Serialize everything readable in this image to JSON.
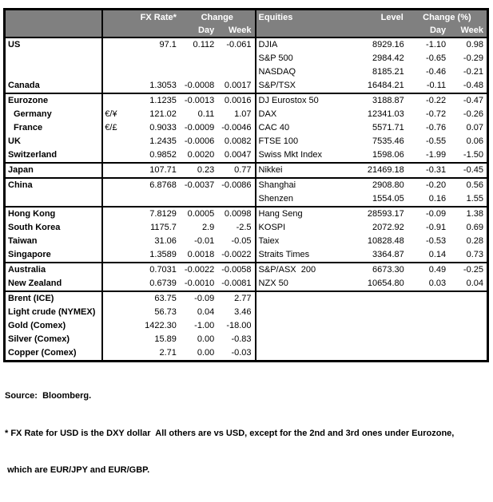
{
  "header": {
    "fx": {
      "region": "",
      "rate": "FX Rate*",
      "change": "Change",
      "day": "Day",
      "week": "Week"
    },
    "equities": {
      "title": "Equities",
      "level": "Level",
      "change": "Change (%)",
      "day": "Day",
      "week": "Week"
    }
  },
  "colors": {
    "header_bg": "#808080",
    "header_text": "#ffffff",
    "border": "#000000",
    "body_text": "#000000"
  },
  "rows": [
    {
      "fx": {
        "label": "US",
        "sym": "",
        "rate": "97.1",
        "day": "0.112",
        "week": "-0.061"
      },
      "eq": {
        "label": "DJIA",
        "level": "8929.16",
        "day": "-1.10",
        "week": "0.98"
      },
      "sep": false
    },
    {
      "fx": {
        "label": "",
        "sym": "",
        "rate": "",
        "day": "",
        "week": ""
      },
      "eq": {
        "label": "S&P 500",
        "level": "2984.42",
        "day": "-0.65",
        "week": "-0.29"
      },
      "sep": false
    },
    {
      "fx": {
        "label": "",
        "sym": "",
        "rate": "",
        "day": "",
        "week": ""
      },
      "eq": {
        "label": "NASDAQ",
        "level": "8185.21",
        "day": "-0.46",
        "week": "-0.21"
      },
      "sep": false
    },
    {
      "fx": {
        "label": "Canada",
        "sym": "",
        "rate": "1.3053",
        "day": "-0.0008",
        "week": "0.0017"
      },
      "eq": {
        "label": "S&P/TSX",
        "level": "16484.21",
        "day": "-0.11",
        "week": "-0.48"
      },
      "sep": true
    },
    {
      "fx": {
        "label": "Eurozone",
        "sym": "",
        "rate": "1.1235",
        "day": "-0.0013",
        "week": "0.0016"
      },
      "eq": {
        "label": "DJ Eurostox 50",
        "level": "3188.87",
        "day": "-0.22",
        "week": "-0.47"
      },
      "sep": false
    },
    {
      "fx": {
        "label": "Germany",
        "sym": "€/¥",
        "rate": "121.02",
        "day": "0.11",
        "week": "1.07",
        "indent": true
      },
      "eq": {
        "label": "DAX",
        "level": "12341.03",
        "day": "-0.72",
        "week": "-0.26"
      },
      "sep": false
    },
    {
      "fx": {
        "label": "France",
        "sym": "€/£",
        "rate": "0.9033",
        "day": "-0.0009",
        "week": "-0.0046",
        "indent": true
      },
      "eq": {
        "label": "CAC 40",
        "level": "5571.71",
        "day": "-0.76",
        "week": "0.07"
      },
      "sep": false
    },
    {
      "fx": {
        "label": "UK",
        "sym": "",
        "rate": "1.2435",
        "day": "-0.0006",
        "week": "0.0082"
      },
      "eq": {
        "label": "FTSE 100",
        "level": "7535.46",
        "day": "-0.55",
        "week": "0.06"
      },
      "sep": false
    },
    {
      "fx": {
        "label": "Switzerland",
        "sym": "",
        "rate": "0.9852",
        "day": "0.0020",
        "week": "0.0047"
      },
      "eq": {
        "label": "Swiss Mkt Index",
        "level": "1598.06",
        "day": "-1.99",
        "week": "-1.50"
      },
      "sep": true
    },
    {
      "fx": {
        "label": "Japan",
        "sym": "",
        "rate": "107.71",
        "day": "0.23",
        "week": "0.77"
      },
      "eq": {
        "label": "Nikkei",
        "level": "21469.18",
        "day": "-0.31",
        "week": "-0.45"
      },
      "sep": true
    },
    {
      "fx": {
        "label": "China",
        "sym": "",
        "rate": "6.8768",
        "day": "-0.0037",
        "week": "-0.0086"
      },
      "eq": {
        "label": "Shanghai",
        "level": "2908.80",
        "day": "-0.20",
        "week": "0.56"
      },
      "sep": false
    },
    {
      "fx": {
        "label": "",
        "sym": "",
        "rate": "",
        "day": "",
        "week": ""
      },
      "eq": {
        "label": "Shenzen",
        "level": "1554.05",
        "day": "0.16",
        "week": "1.55"
      },
      "sep": true
    },
    {
      "fx": {
        "label": "Hong Kong",
        "sym": "",
        "rate": "7.8129",
        "day": "0.0005",
        "week": "0.0098"
      },
      "eq": {
        "label": "Hang Seng",
        "level": "28593.17",
        "day": "-0.09",
        "week": "1.38"
      },
      "sep": false
    },
    {
      "fx": {
        "label": "South Korea",
        "sym": "",
        "rate": "1175.7",
        "day": "2.9",
        "week": "-2.5"
      },
      "eq": {
        "label": "KOSPI",
        "level": "2072.92",
        "day": "-0.91",
        "week": "0.69"
      },
      "sep": false
    },
    {
      "fx": {
        "label": "Taiwan",
        "sym": "",
        "rate": "31.06",
        "day": "-0.01",
        "week": "-0.05"
      },
      "eq": {
        "label": "Taiex",
        "level": "10828.48",
        "day": "-0.53",
        "week": "0.28"
      },
      "sep": false
    },
    {
      "fx": {
        "label": "Singapore",
        "sym": "",
        "rate": "1.3589",
        "day": "0.0018",
        "week": "-0.0022"
      },
      "eq": {
        "label": "Straits Times",
        "level": "3364.87",
        "day": "0.14",
        "week": "0.73"
      },
      "sep": true
    },
    {
      "fx": {
        "label": "Australia",
        "sym": "",
        "rate": "0.7031",
        "day": "-0.0022",
        "week": "-0.0058"
      },
      "eq": {
        "label": "S&P/ASX  200",
        "level": "6673.30",
        "day": "0.49",
        "week": "-0.25"
      },
      "sep": false
    },
    {
      "fx": {
        "label": "New Zealand",
        "sym": "",
        "rate": "0.6739",
        "day": "-0.0010",
        "week": "-0.0081"
      },
      "eq": {
        "label": "NZX 50",
        "level": "10654.80",
        "day": "0.03",
        "week": "0.04"
      },
      "sep": true
    },
    {
      "fx": {
        "label": "Brent (ICE)",
        "sym": "",
        "rate": "63.75",
        "day": "-0.09",
        "week": "2.77"
      },
      "eq": {
        "label": "",
        "level": "",
        "day": "",
        "week": ""
      },
      "sep": false
    },
    {
      "fx": {
        "label": "Light crude (NYMEX)",
        "sym": "",
        "rate": "56.73",
        "day": "0.04",
        "week": "3.46"
      },
      "eq": {
        "label": "",
        "level": "",
        "day": "",
        "week": ""
      },
      "sep": false
    },
    {
      "fx": {
        "label": "Gold (Comex)",
        "sym": "",
        "rate": "1422.30",
        "day": "-1.00",
        "week": "-18.00"
      },
      "eq": {
        "label": "",
        "level": "",
        "day": "",
        "week": ""
      },
      "sep": false
    },
    {
      "fx": {
        "label": "Silver (Comex)",
        "sym": "",
        "rate": "15.89",
        "day": "0.00",
        "week": "-0.83"
      },
      "eq": {
        "label": "",
        "level": "",
        "day": "",
        "week": ""
      },
      "sep": false
    },
    {
      "fx": {
        "label": "Copper (Comex)",
        "sym": "",
        "rate": "2.71",
        "day": "0.00",
        "week": "-0.03"
      },
      "eq": {
        "label": "",
        "level": "",
        "day": "",
        "week": ""
      },
      "sep": false
    }
  ],
  "footer": {
    "source": "Source:  Bloomberg.",
    "note1": "* FX Rate for USD is the DXY dollar  All others are vs USD, except for the 2nd and 3rd ones under Eurozone,",
    "note2": " which are EUR/JPY and EUR/GBP."
  }
}
